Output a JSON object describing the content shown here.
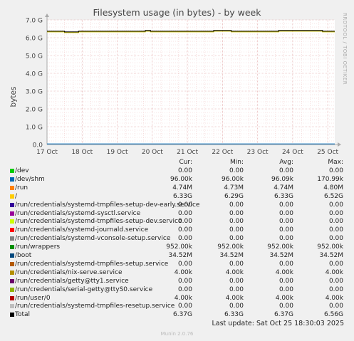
{
  "chart_data": {
    "type": "line",
    "title": "Filesystem usage (in bytes) - by week",
    "ylabel": "bytes",
    "ylim": [
      0,
      7.0
    ],
    "yticks": [
      "0.0",
      "1.0 G",
      "2.0 G",
      "3.0 G",
      "4.0 G",
      "5.0 G",
      "6.0 G",
      "7.0 G"
    ],
    "xticks": [
      "17 Oct",
      "18 Oct",
      "19 Oct",
      "20 Oct",
      "21 Oct",
      "22 Oct",
      "23 Oct",
      "24 Oct",
      "25 Oct"
    ],
    "x_range_days": [
      0,
      8.2
    ],
    "grid": true,
    "series_main": {
      "name": "/",
      "color": "#ccc000",
      "points": [
        [
          0,
          6.33
        ],
        [
          0.5,
          6.33
        ],
        [
          0.5,
          6.29
        ],
        [
          0.9,
          6.29
        ],
        [
          0.9,
          6.33
        ],
        [
          2.8,
          6.33
        ],
        [
          2.8,
          6.37
        ],
        [
          2.95,
          6.37
        ],
        [
          2.95,
          6.33
        ],
        [
          4.75,
          6.33
        ],
        [
          4.75,
          6.37
        ],
        [
          5.25,
          6.37
        ],
        [
          5.25,
          6.33
        ],
        [
          6.6,
          6.33
        ],
        [
          6.6,
          6.37
        ],
        [
          7.85,
          6.37
        ],
        [
          7.85,
          6.33
        ],
        [
          8.2,
          6.33
        ]
      ]
    },
    "series_total": {
      "name": "Total",
      "color": "#000000",
      "points": [
        [
          0,
          6.37
        ],
        [
          0.5,
          6.37
        ],
        [
          0.5,
          6.33
        ],
        [
          0.9,
          6.33
        ],
        [
          0.9,
          6.37
        ],
        [
          2.8,
          6.37
        ],
        [
          2.8,
          6.41
        ],
        [
          2.95,
          6.41
        ],
        [
          2.95,
          6.37
        ],
        [
          4.75,
          6.37
        ],
        [
          4.75,
          6.41
        ],
        [
          5.25,
          6.41
        ],
        [
          5.25,
          6.37
        ],
        [
          6.6,
          6.37
        ],
        [
          6.6,
          6.41
        ],
        [
          7.85,
          6.41
        ],
        [
          7.85,
          6.37
        ],
        [
          8.2,
          6.37
        ]
      ]
    },
    "series_boot_value": 0.03452
  },
  "watermark": "RRDTOOL / TOBI OETIKER",
  "legend": {
    "headers": {
      "cur": "Cur:",
      "min": "Min:",
      "avg": "Avg:",
      "max": "Max:"
    },
    "rows": [
      {
        "name": "/dev",
        "color": "#00cc00",
        "cur": "0.00",
        "min": "0.00",
        "avg": "0.00",
        "max": "0.00"
      },
      {
        "name": "/dev/shm",
        "color": "#0066b3",
        "cur": "96.00k",
        "min": "96.00k",
        "avg": "96.09k",
        "max": "170.99k"
      },
      {
        "name": "/run",
        "color": "#ff8000",
        "cur": "4.74M",
        "min": "4.73M",
        "avg": "4.74M",
        "max": "4.80M"
      },
      {
        "name": "/",
        "color": "#ffcc00",
        "cur": "6.33G",
        "min": "6.29G",
        "avg": "6.33G",
        "max": "6.52G"
      },
      {
        "name": "/run/credentials/systemd-tmpfiles-setup-dev-early.service",
        "color": "#330099",
        "cur": "0.00",
        "min": "0.00",
        "avg": "0.00",
        "max": "0.00"
      },
      {
        "name": "/run/credentials/systemd-sysctl.service",
        "color": "#990099",
        "cur": "0.00",
        "min": "0.00",
        "avg": "0.00",
        "max": "0.00"
      },
      {
        "name": "/run/credentials/systemd-tmpfiles-setup-dev.service",
        "color": "#ccff00",
        "cur": "0.00",
        "min": "0.00",
        "avg": "0.00",
        "max": "0.00"
      },
      {
        "name": "/run/credentials/systemd-journald.service",
        "color": "#ff0000",
        "cur": "0.00",
        "min": "0.00",
        "avg": "0.00",
        "max": "0.00"
      },
      {
        "name": "/run/credentials/systemd-vconsole-setup.service",
        "color": "#808080",
        "cur": "0.00",
        "min": "0.00",
        "avg": "0.00",
        "max": "0.00"
      },
      {
        "name": "/run/wrappers",
        "color": "#008f00",
        "cur": "952.00k",
        "min": "952.00k",
        "avg": "952.00k",
        "max": "952.00k"
      },
      {
        "name": "/boot",
        "color": "#00487d",
        "cur": "34.52M",
        "min": "34.52M",
        "avg": "34.52M",
        "max": "34.52M"
      },
      {
        "name": "/run/credentials/systemd-tmpfiles-setup.service",
        "color": "#b35a00",
        "cur": "0.00",
        "min": "0.00",
        "avg": "0.00",
        "max": "0.00"
      },
      {
        "name": "/run/credentials/nix-serve.service",
        "color": "#b38f00",
        "cur": "4.00k",
        "min": "4.00k",
        "avg": "4.00k",
        "max": "4.00k"
      },
      {
        "name": "/run/credentials/getty@tty1.service",
        "color": "#6b006b",
        "cur": "0.00",
        "min": "0.00",
        "avg": "0.00",
        "max": "0.00"
      },
      {
        "name": "/run/credentials/serial-getty@ttyS0.service",
        "color": "#8fb300",
        "cur": "0.00",
        "min": "0.00",
        "avg": "0.00",
        "max": "0.00"
      },
      {
        "name": "/run/user/0",
        "color": "#b30000",
        "cur": "4.00k",
        "min": "4.00k",
        "avg": "4.00k",
        "max": "4.00k"
      },
      {
        "name": "/run/credentials/systemd-tmpfiles-resetup.service",
        "color": "#bebebe",
        "cur": "0.00",
        "min": "0.00",
        "avg": "0.00",
        "max": "0.00"
      },
      {
        "name": "Total",
        "color": "#000000",
        "cur": "6.37G",
        "min": "6.33G",
        "avg": "6.37G",
        "max": "6.56G"
      }
    ]
  },
  "last_update": "Last update: Sat Oct 25 18:30:03 2025",
  "footer": "Munin 2.0.76"
}
